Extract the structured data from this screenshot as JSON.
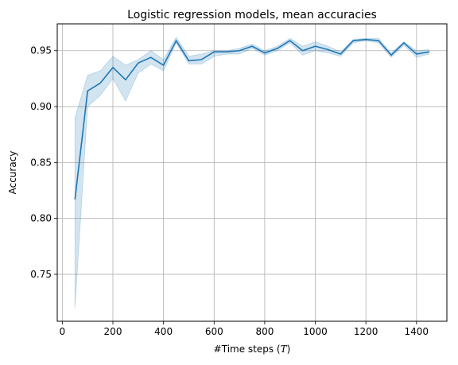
{
  "chart_data": {
    "type": "line",
    "title": "Logistic regression models, mean accuracies",
    "xlabel_prefix": "#Time steps (",
    "xlabel_var": "T",
    "xlabel_suffix": ")",
    "ylabel": "Accuracy",
    "xlim": [
      -20,
      1520
    ],
    "ylim": [
      0.708,
      0.974
    ],
    "xticks": [
      0,
      200,
      400,
      600,
      800,
      1000,
      1200,
      1400
    ],
    "yticks": [
      0.75,
      0.8,
      0.85,
      0.9,
      0.95
    ],
    "ytick_labels": [
      "0.75",
      "0.80",
      "0.85",
      "0.90",
      "0.95"
    ],
    "grid": true,
    "line_color": "#1f77b4",
    "band_color": "#1f77b4",
    "x": [
      50,
      100,
      150,
      200,
      250,
      300,
      350,
      400,
      450,
      500,
      550,
      600,
      650,
      700,
      750,
      800,
      850,
      900,
      950,
      1000,
      1050,
      1100,
      1150,
      1200,
      1250,
      1300,
      1350,
      1400,
      1450
    ],
    "mean": [
      0.817,
      0.914,
      0.921,
      0.935,
      0.924,
      0.939,
      0.944,
      0.937,
      0.959,
      0.941,
      0.942,
      0.949,
      0.949,
      0.95,
      0.954,
      0.948,
      0.952,
      0.959,
      0.95,
      0.954,
      0.951,
      0.947,
      0.959,
      0.96,
      0.959,
      0.946,
      0.957,
      0.947,
      0.949
    ],
    "lower": [
      0.72,
      0.9,
      0.91,
      0.925,
      0.905,
      0.93,
      0.938,
      0.932,
      0.957,
      0.938,
      0.938,
      0.945,
      0.947,
      0.947,
      0.952,
      0.946,
      0.95,
      0.957,
      0.946,
      0.95,
      0.948,
      0.945,
      0.957,
      0.959,
      0.957,
      0.944,
      0.955,
      0.944,
      0.947
    ],
    "upper": [
      0.89,
      0.928,
      0.932,
      0.945,
      0.937,
      0.942,
      0.95,
      0.942,
      0.962,
      0.945,
      0.947,
      0.95,
      0.95,
      0.952,
      0.956,
      0.95,
      0.954,
      0.961,
      0.954,
      0.958,
      0.954,
      0.949,
      0.96,
      0.961,
      0.961,
      0.948,
      0.958,
      0.95,
      0.951
    ]
  }
}
